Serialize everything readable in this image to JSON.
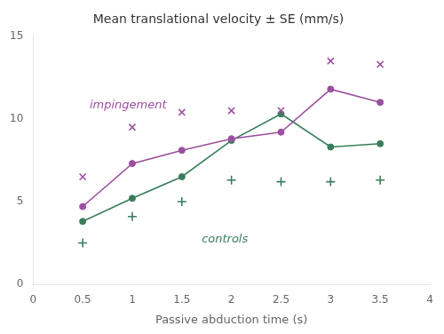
{
  "chart_data": {
    "type": "line",
    "title": "Mean translational velocity ± SE (mm/s)",
    "x_label": "Passive abduction time (s)",
    "xlim": [
      0,
      4
    ],
    "ylim": [
      0,
      15
    ],
    "xticks": [
      0,
      0.5,
      1,
      1.5,
      2,
      2.5,
      3,
      3.5,
      4
    ],
    "yticks": [
      0,
      5,
      10,
      15
    ],
    "grid": false,
    "x": [
      0.5,
      1.0,
      1.5,
      2.0,
      2.5,
      3.0,
      3.5
    ],
    "series": [
      {
        "name": "impingement",
        "type": "line",
        "marker": "circle",
        "color": "#9B4F9E",
        "values": [
          4.7,
          7.3,
          8.1,
          8.8,
          9.2,
          11.8,
          11.0
        ]
      },
      {
        "type": "scatter",
        "marker": "x",
        "color": "#9B4F9E",
        "values": [
          6.5,
          9.5,
          10.4,
          10.5,
          10.5,
          13.5,
          13.3
        ]
      },
      {
        "name": "controls",
        "type": "line",
        "marker": "circle",
        "color": "#3A7D5C",
        "values": [
          3.8,
          5.2,
          6.5,
          8.7,
          10.3,
          8.3,
          8.5
        ]
      },
      {
        "type": "scatter",
        "marker": "+",
        "color": "#3A7D5C",
        "values": [
          2.5,
          4.1,
          5.0,
          6.3,
          6.2,
          6.2,
          6.3
        ]
      }
    ],
    "annotations": [
      {
        "text": "impingement",
        "x": 0.57,
        "y": 10.8,
        "color": "#9B4F9E"
      },
      {
        "text": "controls",
        "x": 1.7,
        "y": 2.7,
        "color": "#3A7D5C"
      }
    ]
  }
}
